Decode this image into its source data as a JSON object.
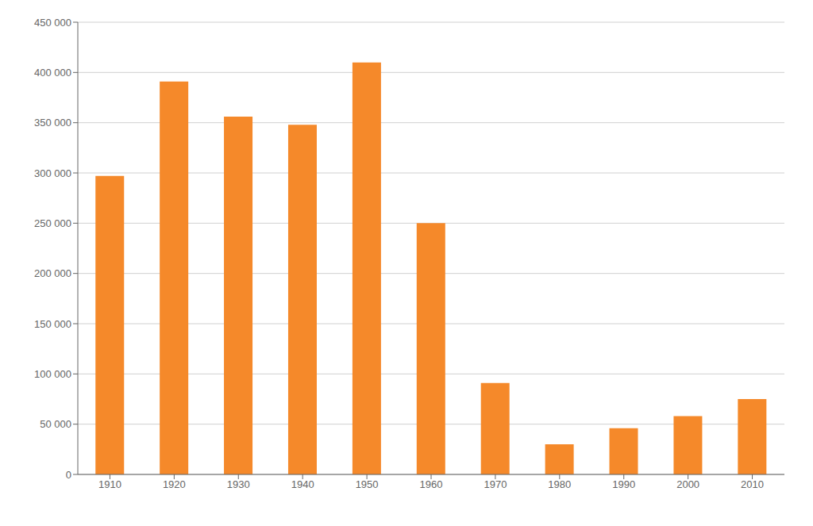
{
  "chart_data": {
    "type": "bar",
    "categories": [
      "1910",
      "1920",
      "1930",
      "1940",
      "1950",
      "1960",
      "1970",
      "1980",
      "1990",
      "2000",
      "2010"
    ],
    "values": [
      297000,
      391000,
      356000,
      348000,
      410000,
      250000,
      91000,
      30000,
      46000,
      58000,
      75000
    ],
    "color": "#F5892A",
    "ylim": [
      0,
      450000
    ],
    "yticks": [
      0,
      {
        "value": 50000,
        "label": "50 000"
      },
      {
        "value": 100000,
        "label": "100 000"
      },
      {
        "value": 150000,
        "label": "150 000"
      },
      {
        "value": 200000,
        "label": "200 000"
      },
      {
        "value": 250000,
        "label": "250 000"
      },
      {
        "value": 300000,
        "label": "300 000"
      },
      {
        "value": 350000,
        "label": "350 000"
      },
      {
        "value": 400000,
        "label": "400 000"
      },
      {
        "value": 450000,
        "label": "450 000"
      }
    ],
    "grid": true
  }
}
